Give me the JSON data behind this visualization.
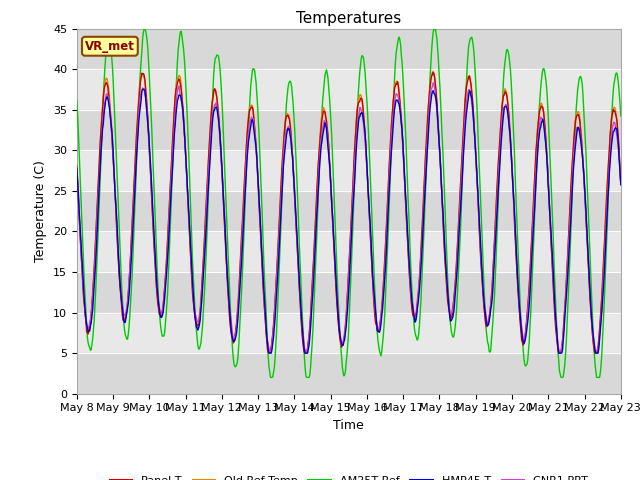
{
  "title": "Temperatures",
  "ylabel": "Temperature (C)",
  "xlabel": "Time",
  "ylim": [
    0,
    45
  ],
  "xlim": [
    0,
    15
  ],
  "xtick_labels": [
    "May 8",
    "May 9",
    "May 10",
    "May 11",
    "May 12",
    "May 13",
    "May 14",
    "May 15",
    "May 16",
    "May 17",
    "May 18",
    "May 19",
    "May 20",
    "May 21",
    "May 22",
    "May 23"
  ],
  "colors": {
    "Panel T": "#cc0000",
    "Old Ref Temp": "#dd8800",
    "AM25T Ref": "#00cc00",
    "HMP45 T": "#0000cc",
    "CNR1 PRT": "#cc44cc"
  },
  "vr_met_label": "VR_met",
  "plot_bg_color": "#e8e8e8",
  "grid_color": "#ffffff",
  "band_colors": [
    "#e0e0e0",
    "#d0d0d0"
  ],
  "title_fontsize": 11,
  "label_fontsize": 9,
  "tick_fontsize": 8,
  "legend_fontsize": 8
}
